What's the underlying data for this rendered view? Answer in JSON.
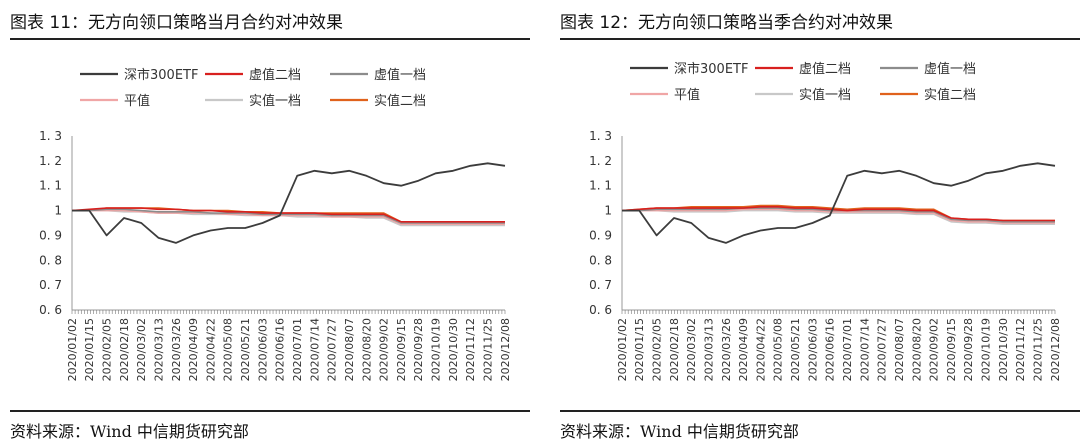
{
  "charts": [
    {
      "figure_title": "图表 11：无方向领口策略当月合约对冲效果",
      "source": "资料来源：Wind  中信期货研究部"
    },
    {
      "figure_title": "图表 12：无方向领口策略当季合约对冲效果",
      "source": "资料来源：Wind  中信期货研究部"
    }
  ],
  "chart_data": [
    {
      "type": "line",
      "title": "",
      "xlabel": "",
      "ylabel": "",
      "ylim": [
        0.6,
        1.3
      ],
      "yticks": [
        "1. 3",
        "1. 2",
        "1. 1",
        "1",
        "0. 9",
        "0. 8",
        "0. 7",
        "0. 6"
      ],
      "x": [
        "2020/01/02",
        "2020/01/15",
        "2020/02/05",
        "2020/02/18",
        "2020/03/02",
        "2020/03/13",
        "2020/03/26",
        "2020/04/09",
        "2020/04/22",
        "2020/05/08",
        "2020/05/21",
        "2020/06/03",
        "2020/06/16",
        "2020/07/01",
        "2020/07/14",
        "2020/07/27",
        "2020/08/07",
        "2020/08/20",
        "2020/09/02",
        "2020/09/15",
        "2020/09/28",
        "2020/10/19",
        "2020/10/30",
        "2020/11/12",
        "2020/11/25",
        "2020/12/08"
      ],
      "legend_position": "top",
      "series": [
        {
          "name": "深市300ETF",
          "color": "#3c3c3c",
          "values": [
            1.0,
            1.0,
            0.9,
            0.97,
            0.95,
            0.89,
            0.87,
            0.9,
            0.92,
            0.93,
            0.93,
            0.95,
            0.98,
            1.14,
            1.16,
            1.15,
            1.16,
            1.14,
            1.11,
            1.1,
            1.12,
            1.15,
            1.16,
            1.18,
            1.19,
            1.18
          ]
        },
        {
          "name": "虚值二档",
          "color": "#d8201f",
          "values": [
            1.0,
            1.005,
            1.01,
            1.01,
            1.01,
            1.005,
            1.005,
            1.0,
            1.0,
            0.995,
            0.995,
            0.99,
            0.99,
            0.99,
            0.99,
            0.985,
            0.985,
            0.985,
            0.985,
            0.955,
            0.955,
            0.955,
            0.955,
            0.955,
            0.955,
            0.955
          ]
        },
        {
          "name": "虚值一档",
          "color": "#8c8c8c",
          "values": [
            1.0,
            1.0,
            1.005,
            1.005,
            1.0,
            0.995,
            0.995,
            0.995,
            0.99,
            0.99,
            0.99,
            0.985,
            0.985,
            0.985,
            0.985,
            0.98,
            0.98,
            0.98,
            0.98,
            0.95,
            0.95,
            0.95,
            0.95,
            0.95,
            0.95,
            0.95
          ]
        },
        {
          "name": "平值",
          "color": "#f0a6a6",
          "values": [
            1.0,
            1.0,
            1.0,
            1.0,
            0.995,
            0.99,
            0.99,
            0.99,
            0.99,
            0.985,
            0.985,
            0.98,
            0.98,
            0.98,
            0.98,
            0.975,
            0.975,
            0.975,
            0.975,
            0.945,
            0.945,
            0.945,
            0.945,
            0.945,
            0.945,
            0.945
          ]
        },
        {
          "name": "实值一档",
          "color": "#c8c8c8",
          "values": [
            1.0,
            1.0,
            1.0,
            0.995,
            0.995,
            0.99,
            0.99,
            0.985,
            0.985,
            0.985,
            0.98,
            0.98,
            0.98,
            0.975,
            0.975,
            0.975,
            0.975,
            0.97,
            0.97,
            0.94,
            0.94,
            0.94,
            0.94,
            0.94,
            0.94,
            0.94
          ]
        },
        {
          "name": "实值二档",
          "color": "#e0621c",
          "values": [
            1.0,
            1.0,
            1.01,
            1.01,
            1.01,
            1.01,
            1.005,
            1.0,
            1.0,
            1.0,
            0.995,
            0.995,
            0.99,
            0.99,
            0.99,
            0.99,
            0.99,
            0.99,
            0.99,
            0.955,
            0.955,
            0.955,
            0.955,
            0.955,
            0.955,
            0.955
          ]
        }
      ]
    },
    {
      "type": "line",
      "title": "",
      "xlabel": "",
      "ylabel": "",
      "ylim": [
        0.6,
        1.3
      ],
      "yticks": [
        "1. 3",
        "1. 2",
        "1. 1",
        "1",
        "0. 9",
        "0. 8",
        "0. 7",
        "0. 6"
      ],
      "x": [
        "2020/01/02",
        "2020/01/15",
        "2020/02/05",
        "2020/02/18",
        "2020/03/02",
        "2020/03/13",
        "2020/03/26",
        "2020/04/09",
        "2020/04/22",
        "2020/05/08",
        "2020/05/21",
        "2020/06/03",
        "2020/06/16",
        "2020/07/01",
        "2020/07/14",
        "2020/07/27",
        "2020/08/07",
        "2020/08/20",
        "2020/09/02",
        "2020/09/15",
        "2020/09/28",
        "2020/10/19",
        "2020/10/30",
        "2020/11/12",
        "2020/11/25",
        "2020/12/08"
      ],
      "legend_position": "top",
      "series": [
        {
          "name": "深市300ETF",
          "color": "#3c3c3c",
          "values": [
            1.0,
            1.0,
            0.9,
            0.97,
            0.95,
            0.89,
            0.87,
            0.9,
            0.92,
            0.93,
            0.93,
            0.95,
            0.98,
            1.14,
            1.16,
            1.15,
            1.16,
            1.14,
            1.11,
            1.1,
            1.12,
            1.15,
            1.16,
            1.18,
            1.19,
            1.18
          ]
        },
        {
          "name": "虚值二档",
          "color": "#d8201f",
          "values": [
            1.0,
            1.005,
            1.01,
            1.01,
            1.01,
            1.01,
            1.01,
            1.01,
            1.015,
            1.015,
            1.01,
            1.01,
            1.005,
            1.0,
            1.005,
            1.005,
            1.005,
            1.0,
            1.0,
            0.97,
            0.965,
            0.965,
            0.96,
            0.96,
            0.96,
            0.96
          ]
        },
        {
          "name": "虚值一档",
          "color": "#8c8c8c",
          "values": [
            1.0,
            1.0,
            1.005,
            1.005,
            1.005,
            1.005,
            1.005,
            1.01,
            1.01,
            1.01,
            1.005,
            1.005,
            1.0,
            1.0,
            1.0,
            1.0,
            1.0,
            0.995,
            0.995,
            0.965,
            0.96,
            0.96,
            0.955,
            0.955,
            0.955,
            0.955
          ]
        },
        {
          "name": "平值",
          "color": "#f0a6a6",
          "values": [
            1.0,
            1.0,
            1.0,
            1.0,
            1.0,
            1.0,
            1.0,
            1.005,
            1.005,
            1.005,
            1.0,
            1.0,
            0.995,
            0.995,
            0.995,
            0.995,
            0.995,
            0.99,
            0.99,
            0.96,
            0.955,
            0.955,
            0.95,
            0.95,
            0.95,
            0.95
          ]
        },
        {
          "name": "实值一档",
          "color": "#c8c8c8",
          "values": [
            1.0,
            1.0,
            1.0,
            0.995,
            0.995,
            0.995,
            0.995,
            1.0,
            1.0,
            1.0,
            0.995,
            0.995,
            0.99,
            0.99,
            0.99,
            0.99,
            0.99,
            0.985,
            0.985,
            0.955,
            0.95,
            0.95,
            0.945,
            0.945,
            0.945,
            0.945
          ]
        },
        {
          "name": "实值二档",
          "color": "#e0621c",
          "values": [
            1.0,
            1.005,
            1.01,
            1.01,
            1.015,
            1.015,
            1.015,
            1.015,
            1.02,
            1.02,
            1.015,
            1.015,
            1.01,
            1.005,
            1.01,
            1.01,
            1.01,
            1.005,
            1.005,
            0.97,
            0.965,
            0.965,
            0.96,
            0.96,
            0.96,
            0.96
          ]
        }
      ]
    }
  ]
}
